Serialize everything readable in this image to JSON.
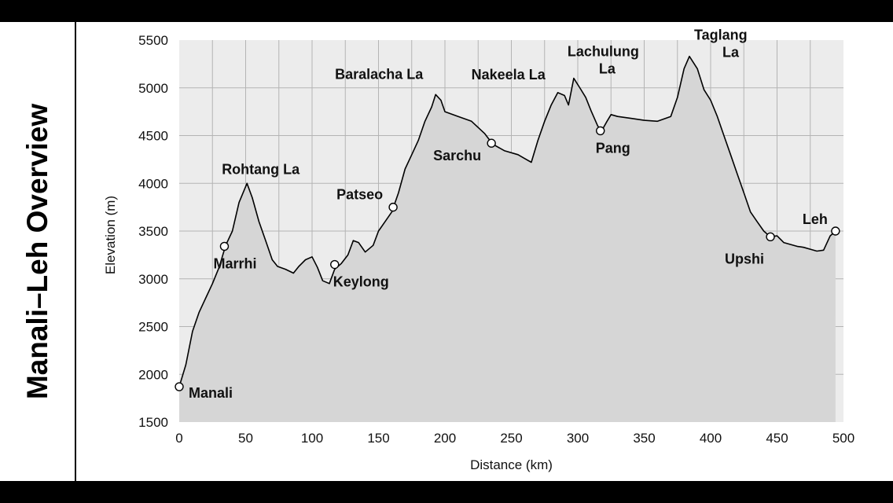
{
  "page": {
    "title": "Manali–Leh Overview"
  },
  "chart_data": {
    "type": "area",
    "title": "Manali–Leh Overview",
    "xlabel": "Distance (km)",
    "ylabel": "Elevation (m)",
    "xlim": [
      0,
      500
    ],
    "ylim": [
      1500,
      5500
    ],
    "xticks": [
      0,
      50,
      100,
      150,
      200,
      250,
      300,
      350,
      400,
      450,
      500
    ],
    "yticks": [
      1500,
      2000,
      2500,
      3000,
      3500,
      4000,
      4500,
      5000,
      5500
    ],
    "grid": true,
    "colors": {
      "fill": "#d6d6d6",
      "line": "#000000",
      "plot_bg": "#ececec",
      "grid": "#b4b4b4"
    },
    "profile": [
      [
        0,
        1870
      ],
      [
        5,
        2100
      ],
      [
        10,
        2450
      ],
      [
        15,
        2650
      ],
      [
        20,
        2800
      ],
      [
        25,
        2950
      ],
      [
        30,
        3120
      ],
      [
        35,
        3350
      ],
      [
        40,
        3500
      ],
      [
        45,
        3800
      ],
      [
        51,
        4000
      ],
      [
        55,
        3850
      ],
      [
        60,
        3600
      ],
      [
        65,
        3400
      ],
      [
        70,
        3200
      ],
      [
        74,
        3130
      ],
      [
        80,
        3100
      ],
      [
        86,
        3060
      ],
      [
        90,
        3130
      ],
      [
        95,
        3200
      ],
      [
        100,
        3230
      ],
      [
        104,
        3120
      ],
      [
        108,
        2980
      ],
      [
        113,
        2950
      ],
      [
        117,
        3100
      ],
      [
        122,
        3160
      ],
      [
        127,
        3250
      ],
      [
        131,
        3400
      ],
      [
        135,
        3380
      ],
      [
        140,
        3280
      ],
      [
        146,
        3350
      ],
      [
        150,
        3500
      ],
      [
        155,
        3600
      ],
      [
        160,
        3700
      ],
      [
        165,
        3900
      ],
      [
        170,
        4150
      ],
      [
        175,
        4300
      ],
      [
        180,
        4450
      ],
      [
        185,
        4650
      ],
      [
        190,
        4800
      ],
      [
        193,
        4930
      ],
      [
        197,
        4870
      ],
      [
        200,
        4750
      ],
      [
        210,
        4700
      ],
      [
        220,
        4650
      ],
      [
        230,
        4520
      ],
      [
        236,
        4410
      ],
      [
        245,
        4340
      ],
      [
        255,
        4300
      ],
      [
        260,
        4260
      ],
      [
        265,
        4220
      ],
      [
        270,
        4450
      ],
      [
        275,
        4650
      ],
      [
        280,
        4820
      ],
      [
        285,
        4950
      ],
      [
        290,
        4920
      ],
      [
        293,
        4820
      ],
      [
        297,
        5100
      ],
      [
        302,
        4990
      ],
      [
        306,
        4900
      ],
      [
        310,
        4760
      ],
      [
        315,
        4600
      ],
      [
        318,
        4550
      ],
      [
        322,
        4650
      ],
      [
        325,
        4720
      ],
      [
        330,
        4700
      ],
      [
        340,
        4680
      ],
      [
        350,
        4660
      ],
      [
        360,
        4650
      ],
      [
        370,
        4700
      ],
      [
        375,
        4900
      ],
      [
        380,
        5200
      ],
      [
        384,
        5330
      ],
      [
        390,
        5200
      ],
      [
        395,
        4980
      ],
      [
        400,
        4870
      ],
      [
        405,
        4700
      ],
      [
        410,
        4500
      ],
      [
        415,
        4300
      ],
      [
        420,
        4100
      ],
      [
        425,
        3900
      ],
      [
        430,
        3700
      ],
      [
        435,
        3600
      ],
      [
        440,
        3500
      ],
      [
        445,
        3440
      ],
      [
        450,
        3450
      ],
      [
        455,
        3380
      ],
      [
        460,
        3360
      ],
      [
        465,
        3340
      ],
      [
        470,
        3330
      ],
      [
        475,
        3310
      ],
      [
        480,
        3290
      ],
      [
        485,
        3300
      ],
      [
        490,
        3450
      ],
      [
        494,
        3500
      ]
    ],
    "places": [
      {
        "name": "Manali",
        "x": 0,
        "y": 1870,
        "marker": true
      },
      {
        "name": "Marrhi",
        "x": 34,
        "y": 3340,
        "marker": true
      },
      {
        "name": "Rohtang La",
        "x": 51,
        "y": 4000,
        "marker": false
      },
      {
        "name": "Keylong",
        "x": 117,
        "y": 3150,
        "marker": true
      },
      {
        "name": "Patseo",
        "x": 161,
        "y": 3750,
        "marker": true
      },
      {
        "name": "Baralacha La",
        "x": 193,
        "y": 4930,
        "marker": false
      },
      {
        "name": "Sarchu",
        "x": 235,
        "y": 4420,
        "marker": true
      },
      {
        "name": "Nakeela La",
        "x": 285,
        "y": 4950,
        "marker": false
      },
      {
        "name": "Lachulung",
        "name2": "La",
        "x": 297,
        "y": 5100,
        "marker": false
      },
      {
        "name": "Pang",
        "x": 317,
        "y": 4550,
        "marker": true
      },
      {
        "name": "Taglang",
        "name2": "La",
        "x": 384,
        "y": 5330,
        "marker": false
      },
      {
        "name": "Upshi",
        "x": 445,
        "y": 3440,
        "marker": true
      },
      {
        "name": "Leh",
        "x": 494,
        "y": 3500,
        "marker": true
      }
    ]
  }
}
